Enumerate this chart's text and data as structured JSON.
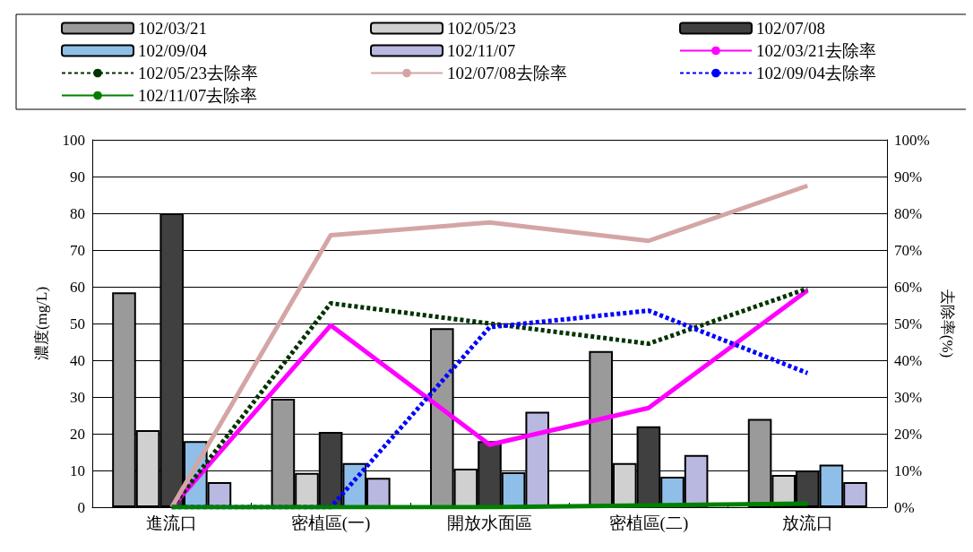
{
  "chart_data": {
    "type": "bar",
    "categories": [
      "進流口",
      "密植區(一)",
      "開放水面區",
      "密植區(二)",
      "放流口"
    ],
    "ylabel": "濃度(mg/L)",
    "y2label": "去除率(%)",
    "ylim": [
      0,
      100
    ],
    "yticks": [
      0,
      10,
      20,
      30,
      40,
      50,
      60,
      70,
      80,
      90,
      100
    ],
    "y2lim": [
      0,
      100
    ],
    "y2ticks": [
      {
        "value": 0,
        "label": "0%"
      },
      {
        "value": 10,
        "label": "10%"
      },
      {
        "value": 20,
        "label": "20%"
      },
      {
        "value": 30,
        "label": "30%"
      },
      {
        "value": 40,
        "label": "40%"
      },
      {
        "value": 50,
        "label": "50%"
      },
      {
        "value": 60,
        "label": "60%"
      },
      {
        "value": 70,
        "label": "70%"
      },
      {
        "value": 80,
        "label": "80%"
      },
      {
        "value": 90,
        "label": "90%"
      },
      {
        "value": 100,
        "label": "100%"
      }
    ],
    "grid": "y",
    "legend": "top",
    "series": [
      {
        "name": "102/03/21",
        "color": "#9a9a9a",
        "values": [
          58.5,
          29.5,
          48.7,
          42.5,
          24
        ]
      },
      {
        "name": "102/05/23",
        "color": "#d0d0d0",
        "values": [
          21,
          9.3,
          10.5,
          12,
          8.8
        ]
      },
      {
        "name": "102/07/08",
        "color": "#404040",
        "values": [
          80,
          20.5,
          18,
          22,
          10
        ]
      },
      {
        "name": "102/09/04",
        "color": "#8fbfe8",
        "values": [
          18,
          12,
          9.5,
          8.3,
          11.6
        ]
      },
      {
        "name": "102/11/07",
        "color": "#b8b8e0",
        "values": [
          6.8,
          8,
          26,
          14.2,
          6.8
        ]
      },
      {
        "name": "102/03/21去除率",
        "type": "line",
        "axis": "y2",
        "color": "#ff00ff",
        "line_style": "solid",
        "values": [
          0,
          49.5,
          17,
          27,
          59
        ]
      },
      {
        "name": "102/05/23去除率",
        "type": "line",
        "axis": "y2",
        "color": "#003300",
        "line_style": "dashed",
        "values": [
          0,
          55.5,
          50,
          44.5,
          59.5
        ]
      },
      {
        "name": "102/07/08去除率",
        "type": "line",
        "axis": "y2",
        "color": "#d4a5a5",
        "line_style": "solid",
        "values": [
          0,
          74,
          77.5,
          72.5,
          87.5
        ]
      },
      {
        "name": "102/09/04去除率",
        "type": "line",
        "axis": "y2",
        "color": "#0000ff",
        "line_style": "dashed",
        "values": [
          0,
          0,
          49,
          53.5,
          36.5
        ]
      },
      {
        "name": "102/11/07去除率",
        "type": "line",
        "axis": "y2",
        "color": "#008000",
        "line_style": "solid",
        "values": [
          0,
          0,
          0,
          0.5,
          1
        ]
      }
    ]
  }
}
